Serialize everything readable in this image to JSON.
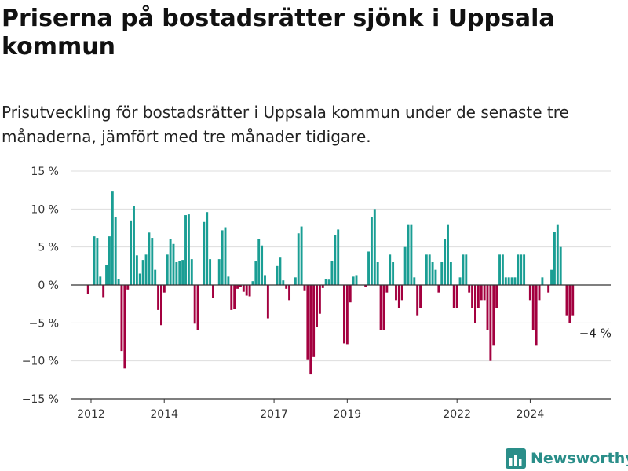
{
  "header": {
    "title": "Priserna på bostadsrätter sjönk i Uppsala kommun",
    "subtitle": "Prisutveckling för bostadsrätter i Uppsala kommun under de senaste tre månaderna, jämfört med tre månader tidigare."
  },
  "brand": {
    "name": "Newsworthy",
    "icon": "newsworthy-chart-logo-icon"
  },
  "colors": {
    "positive": "#1a9e94",
    "negative": "#a3003f",
    "axis": "#333333",
    "grid": "#dddddd"
  },
  "chart_data": {
    "type": "bar",
    "title": "",
    "xlabel": "",
    "ylabel": "",
    "ylim": [
      -15,
      15
    ],
    "grid": true,
    "legend": "none",
    "y_ticks": [
      15,
      10,
      5,
      0,
      -5,
      -10,
      -15
    ],
    "y_tick_labels": [
      "15 %",
      "10 %",
      "5 %",
      "0 %",
      "−5 %",
      "−10 %",
      "−15 %"
    ],
    "x_ticks": [
      "2012",
      "2014",
      "2017",
      "2019",
      "2022",
      "2024"
    ],
    "x_tick_positions": [
      2012.0,
      2014.0,
      2017.0,
      2019.0,
      2022.0,
      2024.0
    ],
    "x_start": 2011.92,
    "x_step": 0.0833,
    "annotation": {
      "text": "−4 %",
      "value": -4
    },
    "values": [
      -1.2,
      0,
      6.4,
      6.2,
      1.1,
      -1.6,
      2.6,
      6.4,
      12.4,
      9.0,
      0.8,
      -8.7,
      -11.0,
      -0.6,
      8.5,
      10.4,
      3.9,
      1.5,
      3.3,
      4.0,
      6.9,
      6.2,
      2.0,
      -3.3,
      -5.3,
      -1.0,
      4.0,
      6.0,
      5.4,
      3.0,
      3.2,
      3.3,
      9.2,
      9.3,
      3.4,
      -5.1,
      -5.9,
      0,
      8.3,
      9.6,
      3.4,
      -1.7,
      0,
      3.4,
      7.2,
      7.6,
      1.1,
      -3.3,
      -3.2,
      -0.5,
      -0.3,
      -0.9,
      -1.4,
      -1.5,
      0.5,
      3.1,
      6.0,
      5.2,
      1.3,
      -4.4,
      0,
      0,
      2.5,
      3.6,
      0.6,
      -0.5,
      -2.0,
      0,
      1.0,
      6.8,
      7.7,
      -0.8,
      -9.8,
      -11.8,
      -9.5,
      -5.5,
      -3.8,
      -0.4,
      0.8,
      0.7,
      3.2,
      6.6,
      7.3,
      0,
      -7.7,
      -7.8,
      -2.3,
      1.1,
      1.3,
      0,
      0,
      -0.3,
      4.4,
      9.0,
      10.0,
      3.0,
      -6.0,
      -6.0,
      -1.0,
      4.0,
      3.0,
      -2.0,
      -3.0,
      -2.0,
      5.0,
      8.0,
      8.0,
      1.0,
      -4.0,
      -3.0,
      0,
      4.0,
      4.0,
      3.0,
      2.0,
      -1.0,
      3.0,
      6.0,
      8.0,
      3.0,
      -3.0,
      -3.0,
      1.0,
      4.0,
      4.0,
      -1.0,
      -3.0,
      -5.0,
      -3.0,
      -2.0,
      -2.0,
      -6.0,
      -10.0,
      -8.0,
      -3.0,
      4.0,
      4.0,
      1.0,
      1.0,
      1.0,
      1.0,
      4.0,
      4.0,
      4.0,
      0,
      -2.0,
      -6.0,
      -8.0,
      -2.0,
      1.0,
      0,
      -1.0,
      2.0,
      7.0,
      8.0,
      5.0,
      0,
      -4.0,
      -5.0,
      -4.0
    ]
  }
}
